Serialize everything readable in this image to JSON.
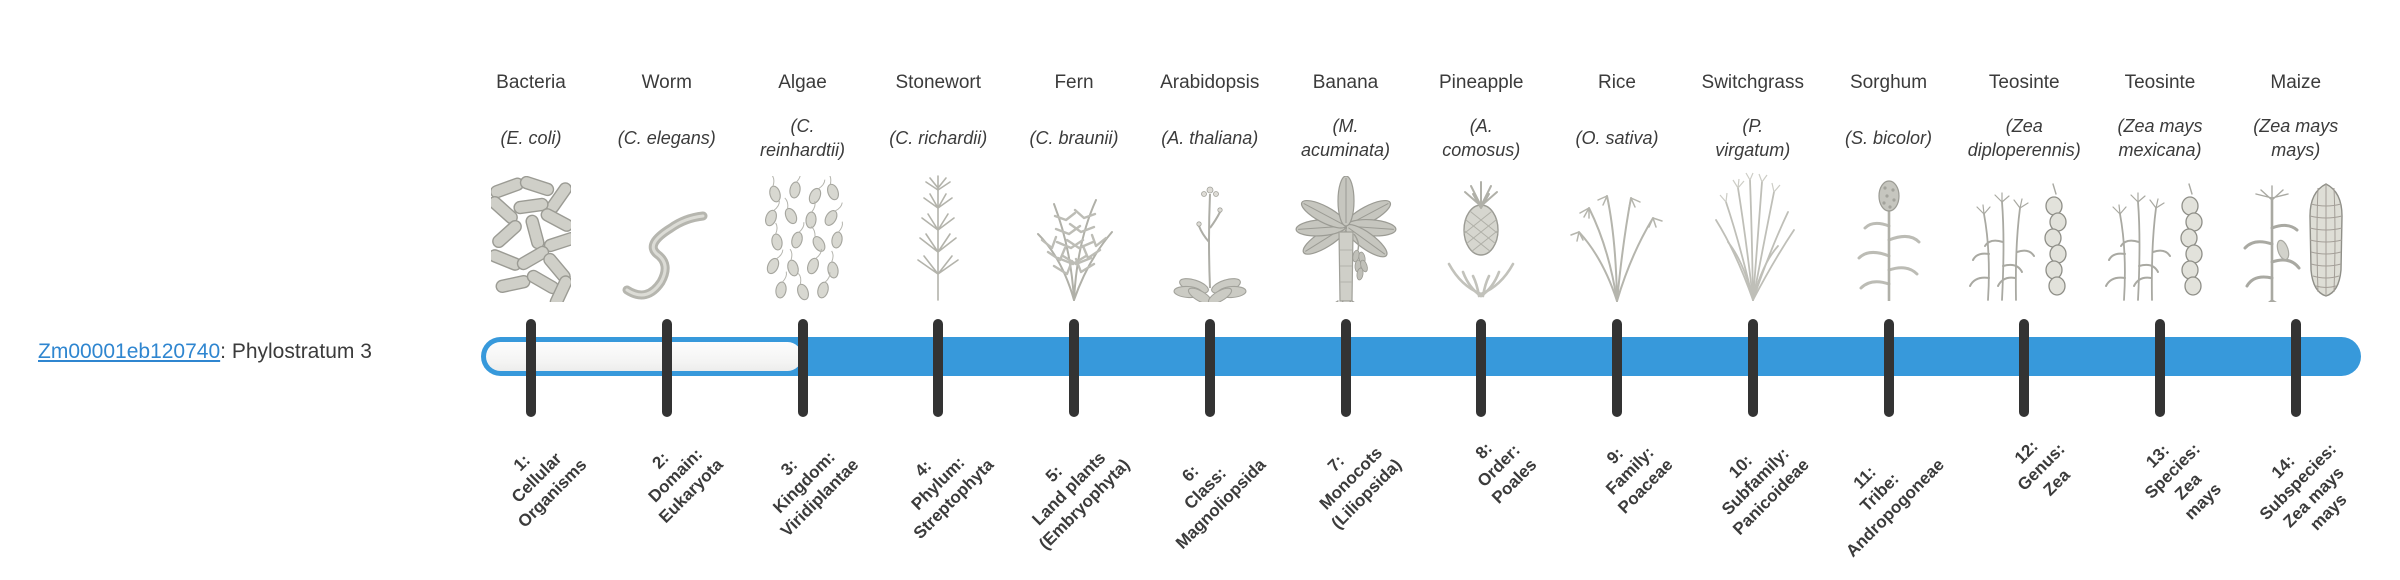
{
  "gene": {
    "id": "Zm00001eb120740",
    "suffix": ": Phylostratum 3"
  },
  "timeline": {
    "strata_count": 14,
    "gene_phylostratum": 3,
    "fill_starts_at_stratum": 3
  },
  "colors": {
    "bar_blue": "#3799db",
    "bar_unfilled": "#f7f7f6",
    "tick": "#333333",
    "text": "#3b3b3b",
    "link_blue": "#2f86d0"
  },
  "organisms": [
    {
      "name": "Bacteria",
      "sci": "(E. coli)",
      "icon": "bacteria-icon",
      "stratum_label": "1:\nCellular\nOrganisms"
    },
    {
      "name": "Worm",
      "sci": "(C. elegans)",
      "icon": "worm-icon",
      "stratum_label": "2:\nDomain:\nEukaryota"
    },
    {
      "name": "Algae",
      "sci": "(C.\nreinhardtii)",
      "icon": "algae-icon",
      "stratum_label": "3:\nKingdom:\nViridiplantae"
    },
    {
      "name": "Stonewort",
      "sci": "(C. richardii)",
      "icon": "stonewort-icon",
      "stratum_label": "4:\nPhylum:\nStreptophyta"
    },
    {
      "name": "Fern",
      "sci": "(C. braunii)",
      "icon": "fern-icon",
      "stratum_label": "5:\nLand plants\n(Embryophyta)"
    },
    {
      "name": "Arabidopsis",
      "sci": "(A. thaliana)",
      "icon": "arabidopsis-icon",
      "stratum_label": "6:\nClass:\nMagnoliopsida"
    },
    {
      "name": "Banana",
      "sci": "(M.\nacuminata)",
      "icon": "banana-icon",
      "stratum_label": "7:\nMonocots\n(Liliopsida)"
    },
    {
      "name": "Pineapple",
      "sci": "(A.\ncomosus)",
      "icon": "pineapple-icon",
      "stratum_label": "8:\nOrder:\nPoales"
    },
    {
      "name": "Rice",
      "sci": "(O. sativa)",
      "icon": "rice-icon",
      "stratum_label": "9:\nFamily:\nPoaceae"
    },
    {
      "name": "Switchgrass",
      "sci": "(P.\nvirgatum)",
      "icon": "switchgrass-icon",
      "stratum_label": "10:\nSubfamily:\nPanicoideae"
    },
    {
      "name": "Sorghum",
      "sci": "(S. bicolor)",
      "icon": "sorghum-icon",
      "stratum_label": "11:\nTribe:\nAndropogoneae"
    },
    {
      "name": "Teosinte",
      "sci": "(Zea\ndiploperennis)",
      "icon": "teosinte-icon",
      "stratum_label": "12:\nGenus:\nZea"
    },
    {
      "name": "Teosinte",
      "sci": "(Zea mays\nmexicana)",
      "icon": "teosinte-icon",
      "stratum_label": "13:\nSpecies:\nZea\nmays"
    },
    {
      "name": "Maize",
      "sci": "(Zea mays\nmays)",
      "icon": "maize-icon",
      "stratum_label": "14:\nSubspecies:\nZea mays\nmays"
    }
  ]
}
